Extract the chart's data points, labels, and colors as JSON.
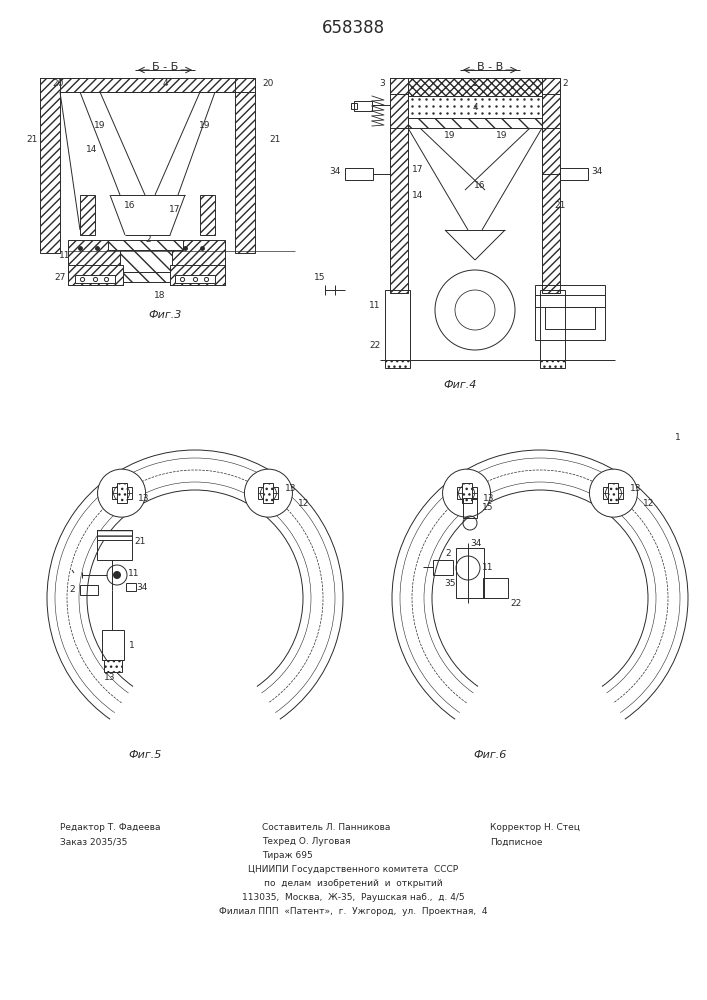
{
  "title": "658388",
  "title_fontsize": 12,
  "bg_color": "#ffffff",
  "line_color": "#2a2a2a",
  "fig3_label": "Фиг.3",
  "fig4_label": "Фиг.4",
  "fig5_label": "Фиг.5",
  "fig6_label": "Фиг.6",
  "section_b_b": "Б - Б",
  "section_v_v": "В - В",
  "footer_line1_left": "Редактор Т. Фадеева",
  "footer_line2_left": "Заказ 2035/35",
  "footer_line1_center": "Составитель Л. Панникова",
  "footer_line1_center2": "Техред О. Луговая",
  "footer_line2_center": "Тираж 695",
  "footer_line1_right": "Корректор Н. Стец",
  "footer_line2_right": "Подписное",
  "footer_institute": "ЦНИИПИ Государственного комитета  СССР",
  "footer_dept": "по  делам  изобретений  и  открытий",
  "footer_addr1": "113035,  Москва,  Ж-35,  Раушская наб.,  д. 4/5",
  "footer_addr2": "Филиал ППП  «Патент»,  г.  Ужгород,  ул.  Проектная,  4"
}
